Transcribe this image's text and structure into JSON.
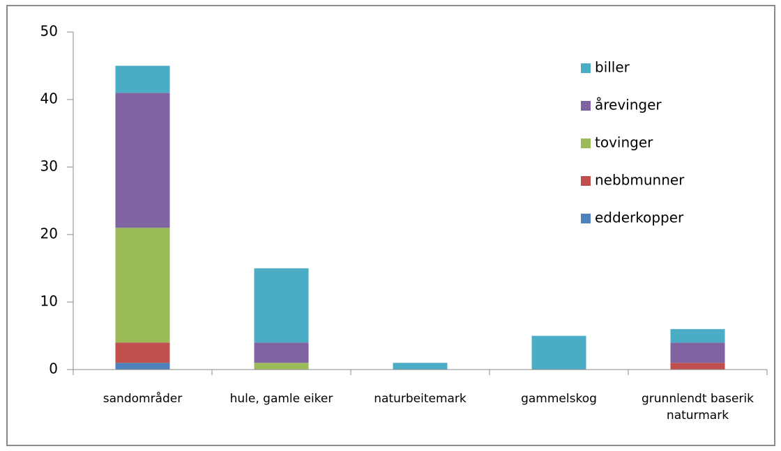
{
  "chart_data": {
    "type": "stacked_bar",
    "categories": [
      "sandområder",
      "hule, gamle eiker",
      "naturbeitemark",
      "gammelskog",
      "grunnlendt baserik naturmark"
    ],
    "series": [
      {
        "name": "edderkopper",
        "color": "#4f81bd",
        "values": [
          1,
          0,
          0,
          0,
          0
        ]
      },
      {
        "name": "nebbmunner",
        "color": "#c0504d",
        "values": [
          3,
          0,
          0,
          0,
          1
        ]
      },
      {
        "name": "tovinger",
        "color": "#9bbb59",
        "values": [
          17,
          1,
          0,
          0,
          0
        ]
      },
      {
        "name": "årevinger",
        "color": "#8064a2",
        "values": [
          20,
          3,
          0,
          0,
          3
        ]
      },
      {
        "name": "biller",
        "color": "#4bacc6",
        "values": [
          4,
          11,
          1,
          5,
          2
        ]
      }
    ],
    "ylim": [
      0,
      50
    ],
    "yticks": [
      0,
      10,
      20,
      30,
      40,
      50
    ],
    "grid": false,
    "legend": "right"
  }
}
